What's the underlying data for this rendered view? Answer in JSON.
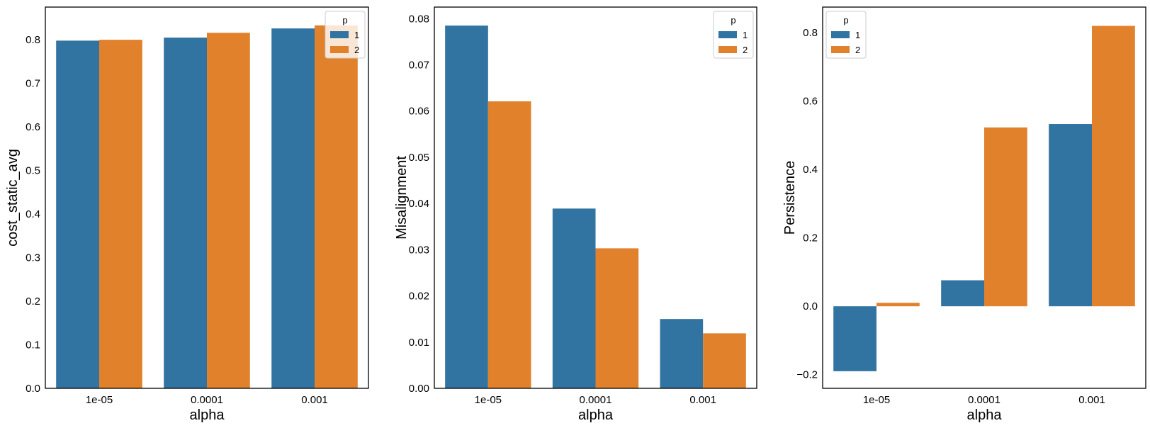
{
  "colors": {
    "series_1": "#3274a1",
    "series_2": "#e1812c"
  },
  "chart_data": [
    {
      "type": "bar",
      "categories": [
        "1e-05",
        "0.0001",
        "0.001"
      ],
      "xlabel": "alpha",
      "ylabel": "cost_static_avg",
      "ylim": [
        0,
        0.875
      ],
      "yticks": [
        0.0,
        0.1,
        0.2,
        0.3,
        0.4,
        0.5,
        0.6,
        0.7,
        0.8
      ],
      "ytick_labels": [
        "0.0",
        "0.1",
        "0.2",
        "0.3",
        "0.4",
        "0.5",
        "0.6",
        "0.7",
        "0.8"
      ],
      "legend": {
        "title": "p",
        "placement": "upper right"
      },
      "series": [
        {
          "name": "1",
          "values": [
            0.798,
            0.805,
            0.826
          ]
        },
        {
          "name": "2",
          "values": [
            0.8,
            0.816,
            0.833
          ]
        }
      ]
    },
    {
      "type": "bar",
      "categories": [
        "1e-05",
        "0.0001",
        "0.001"
      ],
      "xlabel": "alpha",
      "ylabel": "Misalignment",
      "ylim": [
        0,
        0.0825
      ],
      "yticks": [
        0.0,
        0.01,
        0.02,
        0.03,
        0.04,
        0.05,
        0.06,
        0.07,
        0.08
      ],
      "ytick_labels": [
        "0.00",
        "0.01",
        "0.02",
        "0.03",
        "0.04",
        "0.05",
        "0.06",
        "0.07",
        "0.08"
      ],
      "legend": {
        "title": "p",
        "placement": "upper right"
      },
      "series": [
        {
          "name": "1",
          "values": [
            0.0785,
            0.0389,
            0.015
          ]
        },
        {
          "name": "2",
          "values": [
            0.0621,
            0.0303,
            0.0119
          ]
        }
      ]
    },
    {
      "type": "bar",
      "categories": [
        "1e-05",
        "0.0001",
        "0.001"
      ],
      "xlabel": "alpha",
      "ylabel": "Persistence",
      "ylim": [
        -0.24,
        0.875
      ],
      "yticks": [
        -0.2,
        0.0,
        0.2,
        0.4,
        0.6,
        0.8
      ],
      "ytick_labels": [
        "−0.2",
        "0.0",
        "0.2",
        "0.4",
        "0.6",
        "0.8"
      ],
      "legend": {
        "title": "p",
        "placement": "upper left"
      },
      "series": [
        {
          "name": "1",
          "values": [
            -0.19,
            0.076,
            0.533
          ]
        },
        {
          "name": "2",
          "values": [
            0.01,
            0.523,
            0.82
          ]
        }
      ]
    }
  ]
}
